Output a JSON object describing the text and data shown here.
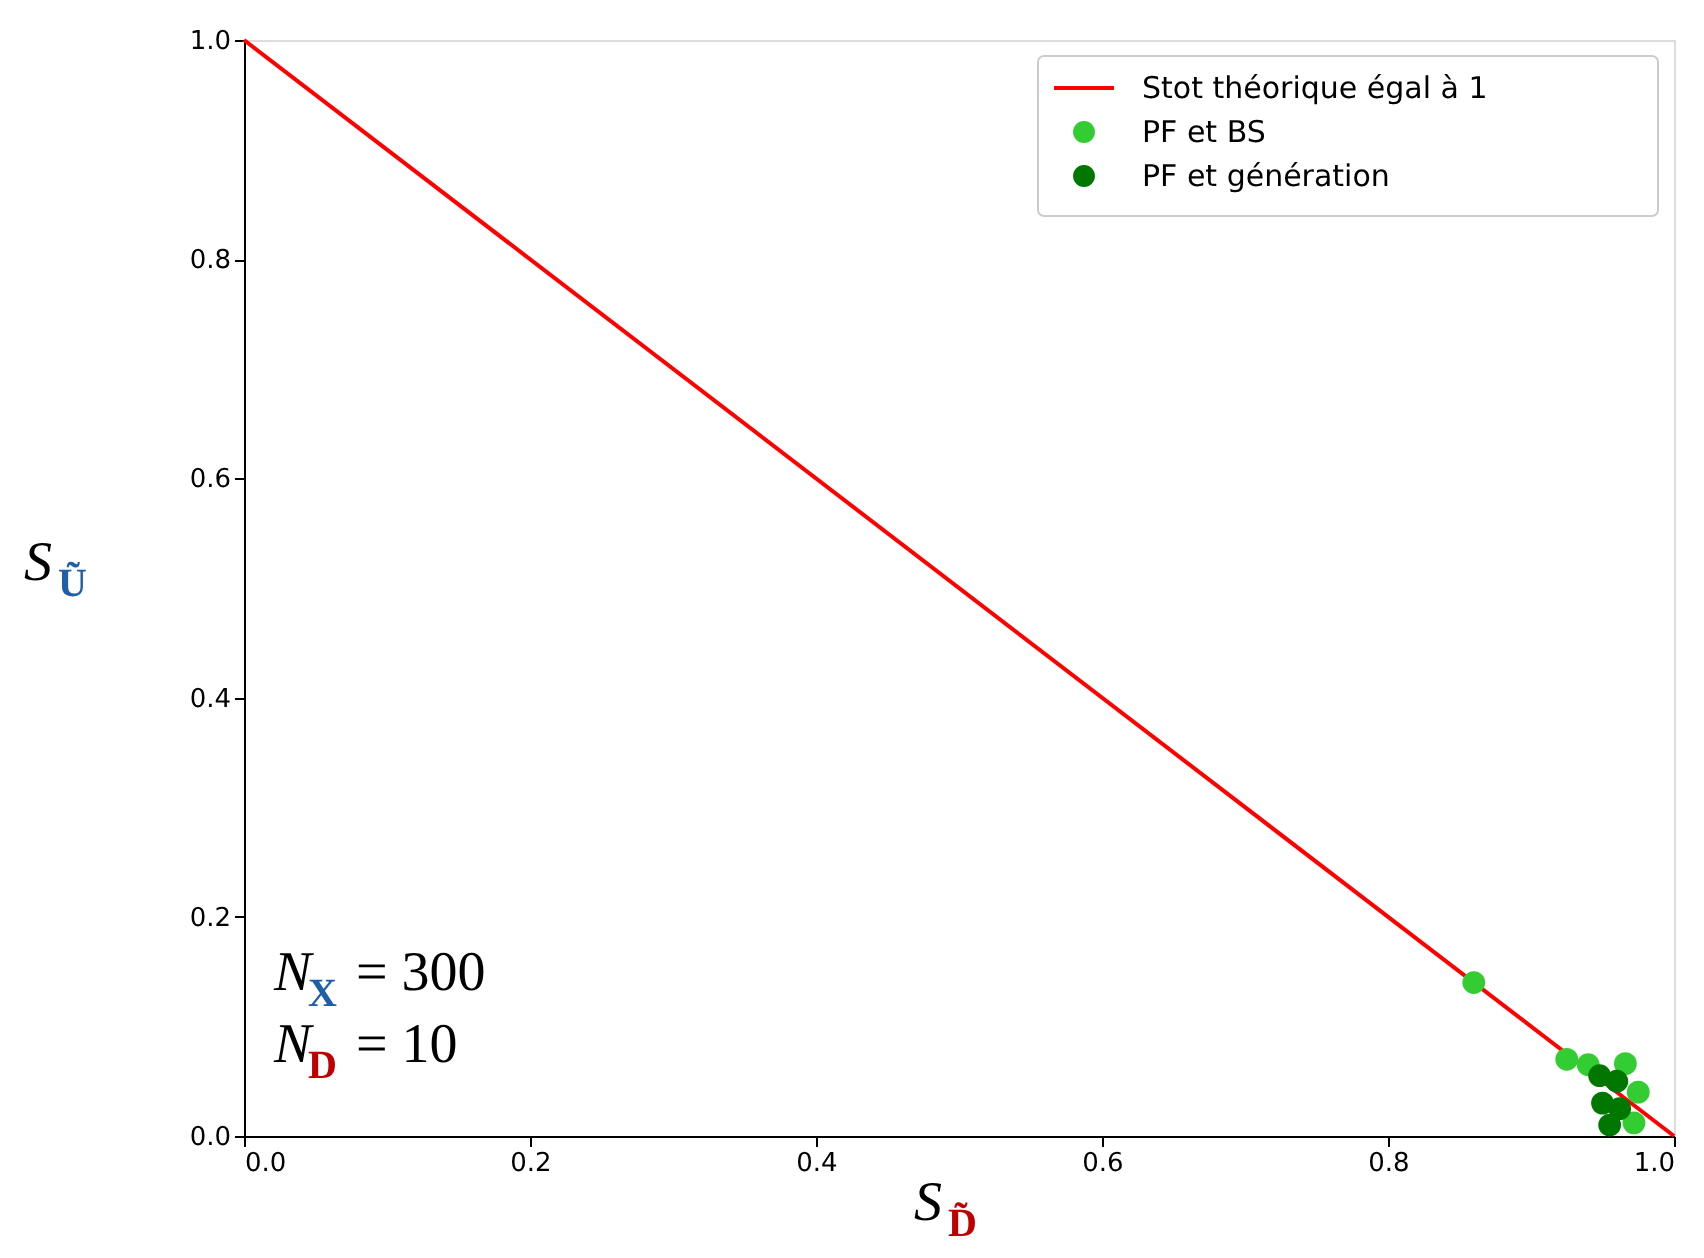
{
  "chart_data": {
    "type": "scatter",
    "xlabel": "S$_{D̃}$",
    "ylabel": "S$_{Ũ}$",
    "xlim": [
      0,
      1
    ],
    "ylim": [
      0,
      1
    ],
    "xticks": [
      {
        "value": 0,
        "label": "0.0"
      },
      0.2,
      0.4,
      0.6,
      0.8,
      {
        "value": 1,
        "label": "1.0"
      }
    ],
    "yticks": [
      {
        "value": 0,
        "label": "0.0"
      },
      0.2,
      0.4,
      0.6,
      0.8,
      {
        "value": 1,
        "label": "1.0"
      }
    ],
    "grid": false,
    "legend": "top right",
    "marker": "circle",
    "series": [
      {
        "name": "Stot théorique égal à 1",
        "type": "line",
        "marker": "none",
        "color": "#ff0000",
        "x": [
          0,
          1
        ],
        "values": [
          1,
          0
        ]
      },
      {
        "name": "PF et BS",
        "color": "#33cc33",
        "x": [
          0.86,
          0.925,
          0.94,
          0.975,
          0.972,
          0.966
        ],
        "values": [
          0.14,
          0.07,
          0.065,
          0.04,
          0.012,
          0.066
        ]
      },
      {
        "name": "PF et génération",
        "color": "#007700",
        "x": [
          0.948,
          0.96,
          0.95,
          0.962,
          0.955
        ],
        "values": [
          0.055,
          0.05,
          0.03,
          0.025,
          0.01
        ]
      }
    ],
    "annotations": [
      "N$_{X}$ = 300",
      "N$_{D}$ = 10"
    ]
  }
}
